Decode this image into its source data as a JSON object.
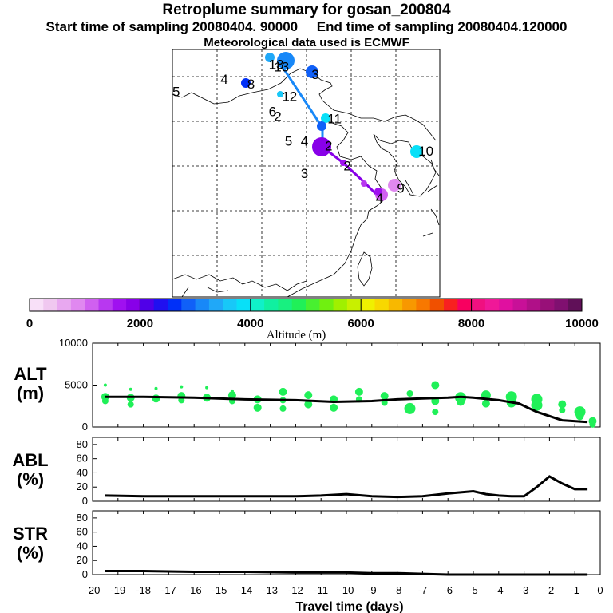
{
  "title": "Retroplume summary for gosan_200804",
  "subtitle_start": "Start time of sampling 20080404. 90000",
  "subtitle_end": "End time of sampling 20080404.120000",
  "subtitle_met": "Meteorological data used is ECMWF",
  "colorbar": {
    "label": "Altitude (m)",
    "ticks": [
      "0",
      "2000",
      "4000",
      "6000",
      "8000",
      "10000"
    ],
    "colors": [
      "#f8e0f8",
      "#f0c8f0",
      "#e8a8f0",
      "#e088f0",
      "#d060f0",
      "#b838f0",
      "#a010f0",
      "#8800e8",
      "#5000e8",
      "#2010f0",
      "#0030f8",
      "#1060f8",
      "#1888f8",
      "#20a8f8",
      "#18c8f8",
      "#08e0f8",
      "#10f0c8",
      "#10f0a0",
      "#18f080",
      "#20f058",
      "#48f030",
      "#70f010",
      "#a0f000",
      "#c8f000",
      "#f0f000",
      "#f8d800",
      "#f8b800",
      "#f89800",
      "#f87800",
      "#f05000",
      "#f82020",
      "#f80060",
      "#f01080",
      "#f01898",
      "#e010a0",
      "#c81098",
      "#b01088",
      "#981078",
      "#801070",
      "#601058"
    ]
  },
  "map": {
    "labels": [
      {
        "text": "13",
        "lx": 0.38,
        "ly": 0.05
      },
      {
        "text": "13",
        "lx": 0.36,
        "ly": 0.04
      },
      {
        "text": "3",
        "lx": 0.52,
        "ly": 0.08
      },
      {
        "text": "4",
        "lx": 0.18,
        "ly": 0.1
      },
      {
        "text": "8",
        "lx": 0.28,
        "ly": 0.12
      },
      {
        "text": "5",
        "lx": 0.0,
        "ly": 0.15
      },
      {
        "text": "12",
        "lx": 0.41,
        "ly": 0.17
      },
      {
        "text": "6",
        "lx": 0.36,
        "ly": 0.23
      },
      {
        "text": "2",
        "lx": 0.38,
        "ly": 0.25
      },
      {
        "text": "11",
        "lx": 0.58,
        "ly": 0.26
      },
      {
        "text": "5",
        "lx": 0.42,
        "ly": 0.35
      },
      {
        "text": "4",
        "lx": 0.48,
        "ly": 0.35
      },
      {
        "text": "2",
        "lx": 0.57,
        "ly": 0.37
      },
      {
        "text": "10",
        "lx": 0.92,
        "ly": 0.39
      },
      {
        "text": "3",
        "lx": 0.48,
        "ly": 0.48
      },
      {
        "text": "2",
        "lx": 0.64,
        "ly": 0.45
      },
      {
        "text": "9",
        "lx": 0.84,
        "ly": 0.54
      },
      {
        "text": "4",
        "lx": 0.76,
        "ly": 0.58
      }
    ]
  },
  "chart_data": [
    {
      "type": "scatter",
      "panel": "ALT",
      "ylabel": "ALT\n(m)",
      "ylabel_line1": "ALT",
      "ylabel_line2": "(m)",
      "xlabel": "Travel time (days)",
      "xlim": [
        -20,
        0
      ],
      "ylim": [
        0,
        10000
      ],
      "yticks": [
        "10000",
        "5000",
        "0"
      ],
      "ytick_values": [
        10000,
        5000,
        0
      ],
      "median_line": {
        "x": [
          -19.5,
          -18,
          -16,
          -14,
          -12,
          -10.5,
          -9,
          -8,
          -7,
          -6,
          -5.5,
          -5,
          -4,
          -3.2,
          -2.5,
          -1.5,
          -0.5
        ],
        "y": [
          3600,
          3600,
          3500,
          3300,
          3200,
          3000,
          3100,
          3300,
          3400,
          3500,
          3600,
          3500,
          3200,
          2800,
          1800,
          800,
          600
        ]
      },
      "dots": [
        {
          "x": -19.5,
          "y": 3600,
          "r": 5
        },
        {
          "x": -19.5,
          "y": 3100,
          "r": 4
        },
        {
          "x": -19.5,
          "y": 5000,
          "r": 2
        },
        {
          "x": -18.5,
          "y": 3500,
          "r": 5
        },
        {
          "x": -18.5,
          "y": 2700,
          "r": 4
        },
        {
          "x": -18.5,
          "y": 4500,
          "r": 2
        },
        {
          "x": -17.5,
          "y": 3400,
          "r": 5
        },
        {
          "x": -17.5,
          "y": 4600,
          "r": 2
        },
        {
          "x": -16.5,
          "y": 3700,
          "r": 5
        },
        {
          "x": -16.5,
          "y": 3200,
          "r": 4
        },
        {
          "x": -16.5,
          "y": 4800,
          "r": 2
        },
        {
          "x": -15.5,
          "y": 3500,
          "r": 5
        },
        {
          "x": -15.5,
          "y": 4700,
          "r": 2
        },
        {
          "x": -14.5,
          "y": 3800,
          "r": 5
        },
        {
          "x": -14.5,
          "y": 3100,
          "r": 4
        },
        {
          "x": -14.5,
          "y": 4300,
          "r": 2
        },
        {
          "x": -13.5,
          "y": 3300,
          "r": 5
        },
        {
          "x": -13.5,
          "y": 2300,
          "r": 5
        },
        {
          "x": -12.5,
          "y": 4200,
          "r": 5
        },
        {
          "x": -12.5,
          "y": 3200,
          "r": 4
        },
        {
          "x": -12.5,
          "y": 2200,
          "r": 4
        },
        {
          "x": -11.5,
          "y": 3800,
          "r": 5
        },
        {
          "x": -11.5,
          "y": 2700,
          "r": 5
        },
        {
          "x": -10.5,
          "y": 3300,
          "r": 5
        },
        {
          "x": -10.5,
          "y": 2300,
          "r": 5
        },
        {
          "x": -9.5,
          "y": 4200,
          "r": 5
        },
        {
          "x": -9.5,
          "y": 3300,
          "r": 4
        },
        {
          "x": -8.5,
          "y": 3700,
          "r": 5
        },
        {
          "x": -8.5,
          "y": 2900,
          "r": 4
        },
        {
          "x": -7.5,
          "y": 4000,
          "r": 4
        },
        {
          "x": -7.5,
          "y": 2200,
          "r": 7
        },
        {
          "x": -6.5,
          "y": 5000,
          "r": 5
        },
        {
          "x": -6.5,
          "y": 3100,
          "r": 5
        },
        {
          "x": -6.5,
          "y": 1800,
          "r": 4
        },
        {
          "x": -5.5,
          "y": 3500,
          "r": 7
        },
        {
          "x": -5.5,
          "y": 3000,
          "r": 5
        },
        {
          "x": -4.5,
          "y": 3800,
          "r": 6
        },
        {
          "x": -4.5,
          "y": 2800,
          "r": 5
        },
        {
          "x": -3.5,
          "y": 3600,
          "r": 7
        },
        {
          "x": -3.5,
          "y": 2900,
          "r": 6
        },
        {
          "x": -2.5,
          "y": 3300,
          "r": 7
        },
        {
          "x": -2.5,
          "y": 2600,
          "r": 7
        },
        {
          "x": -1.5,
          "y": 2700,
          "r": 5
        },
        {
          "x": -1.5,
          "y": 2000,
          "r": 4
        },
        {
          "x": -0.8,
          "y": 1800,
          "r": 7
        },
        {
          "x": -0.8,
          "y": 1300,
          "r": 5
        },
        {
          "x": -0.3,
          "y": 700,
          "r": 5
        },
        {
          "x": -0.3,
          "y": 300,
          "r": 4
        }
      ]
    },
    {
      "type": "line",
      "panel": "ABL",
      "ylabel": "ABL\n(%)",
      "ylabel_line1": "ABL",
      "ylabel_line2": "(%)",
      "ylim": [
        0,
        90
      ],
      "yticks": [
        "80",
        "60",
        "40",
        "20",
        "0"
      ],
      "ytick_values": [
        80,
        60,
        40,
        20,
        0
      ],
      "x": [
        -19.5,
        -18,
        -16,
        -14,
        -12,
        -11,
        -10,
        -9,
        -8,
        -7,
        -6,
        -5,
        -4.5,
        -4,
        -3.5,
        -3,
        -2.5,
        -2,
        -1.5,
        -1,
        -0.5
      ],
      "y": [
        8,
        7,
        7,
        7,
        7,
        8,
        10,
        7,
        6,
        7,
        11,
        14,
        10,
        8,
        7,
        7,
        20,
        35,
        25,
        17,
        17
      ]
    },
    {
      "type": "line",
      "panel": "STR",
      "ylabel": "STR\n(%)",
      "ylabel_line1": "STR",
      "ylabel_line2": "(%)",
      "ylim": [
        0,
        90
      ],
      "yticks": [
        "80",
        "60",
        "40",
        "20",
        "0"
      ],
      "ytick_values": [
        80,
        60,
        40,
        20,
        0
      ],
      "x": [
        -19.5,
        -18,
        -16,
        -14,
        -12,
        -10,
        -9,
        -8,
        -7,
        -6,
        -5,
        -4,
        -3,
        -2,
        -1,
        -0.5
      ],
      "y": [
        5,
        5,
        4,
        4,
        3,
        3,
        2,
        2,
        1,
        0,
        0,
        0,
        0,
        0,
        0,
        0
      ]
    }
  ],
  "x_ticks": [
    "-20",
    "-19",
    "-18",
    "-17",
    "-16",
    "-15",
    "-14",
    "-13",
    "-12",
    "-11",
    "-10",
    "-9",
    "-8",
    "-7",
    "-6",
    "-5",
    "-4",
    "-3",
    "-2",
    "-1",
    "0"
  ],
  "x_tick_values": [
    -20,
    -19,
    -18,
    -17,
    -16,
    -15,
    -14,
    -13,
    -12,
    -11,
    -10,
    -9,
    -8,
    -7,
    -6,
    -5,
    -4,
    -3,
    -2,
    -1,
    0
  ]
}
